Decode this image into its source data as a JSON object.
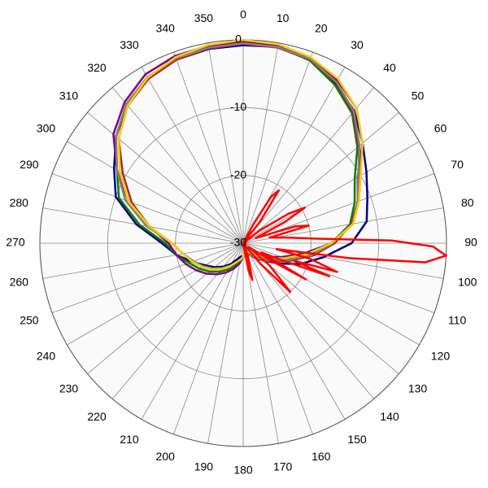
{
  "chart_data": {
    "type": "polar",
    "rlim": [
      -30,
      0
    ],
    "rticks": [
      0,
      -10,
      -20,
      -30
    ],
    "thetaticks": [
      0,
      10,
      20,
      30,
      40,
      50,
      60,
      70,
      80,
      90,
      100,
      110,
      120,
      130,
      140,
      150,
      160,
      170,
      180,
      190,
      200,
      210,
      220,
      230,
      240,
      250,
      260,
      270,
      280,
      290,
      300,
      310,
      320,
      330,
      340,
      350
    ],
    "grid": true,
    "series": [
      {
        "color": "#000080",
        "theta": [
          0,
          10,
          20,
          30,
          40,
          50,
          60,
          70,
          80,
          90,
          100,
          110,
          120,
          130,
          140,
          150,
          160,
          170,
          180,
          190,
          200,
          210,
          220,
          230,
          240,
          250,
          260,
          270,
          280,
          290,
          300,
          310,
          320,
          330,
          340,
          350
        ],
        "values": [
          -0.8,
          -0.6,
          -1.2,
          -2.8,
          -4.5,
          -7,
          -9,
          -10.5,
          -11.5,
          -14,
          -18,
          -21,
          -24,
          -26,
          -27,
          -28,
          -28,
          -28,
          -28,
          -28,
          -27.5,
          -26.5,
          -25.5,
          -24.5,
          -23.5,
          -22,
          -20,
          -18,
          -14,
          -10,
          -8,
          -5.5,
          -3.5,
          -2,
          -1.2,
          -0.9
        ]
      },
      {
        "color": "#008000",
        "theta": [
          0,
          10,
          20,
          30,
          40,
          50,
          60,
          70,
          80,
          90,
          100,
          110,
          120,
          130,
          140,
          150,
          160,
          170,
          180,
          190,
          200,
          210,
          220,
          230,
          240,
          250,
          260,
          270,
          280,
          290,
          300,
          310,
          320,
          330,
          340,
          350
        ],
        "values": [
          -0.4,
          -0.6,
          -1.3,
          -3,
          -5,
          -8,
          -11,
          -12.5,
          -14,
          -17,
          -20,
          -23,
          -25,
          -26.5,
          -27.5,
          -28,
          -28.5,
          -28.5,
          -28,
          -27.5,
          -26.5,
          -25.5,
          -24.5,
          -23.5,
          -22.5,
          -21.5,
          -20,
          -18.5,
          -14.5,
          -10.5,
          -8.5,
          -5.5,
          -3.2,
          -1.8,
          -1,
          -0.6
        ]
      },
      {
        "color": "#800080",
        "theta": [
          0,
          10,
          20,
          30,
          40,
          50,
          60,
          70,
          80,
          90,
          100,
          110,
          120,
          130,
          140,
          150,
          160,
          170,
          180,
          190,
          200,
          210,
          220,
          230,
          240,
          250,
          260,
          270,
          280,
          290,
          300,
          310,
          320,
          330,
          340,
          350
        ],
        "values": [
          -0.3,
          -0.4,
          -1,
          -2.2,
          -4,
          -7,
          -10.5,
          -12,
          -13.5,
          -17,
          -21,
          -24,
          -26,
          -27,
          -28,
          -28.5,
          -28.5,
          -28.5,
          -28,
          -27,
          -26,
          -25,
          -24,
          -23,
          -22,
          -21,
          -20,
          -19,
          -16,
          -12,
          -8.5,
          -5,
          -2.8,
          -1.2,
          -0.6,
          -0.4
        ]
      },
      {
        "color": "#a52a2a",
        "theta": [
          0,
          10,
          20,
          30,
          40,
          50,
          60,
          70,
          80,
          90,
          100,
          110,
          120,
          130,
          140,
          150,
          160,
          170,
          180,
          190,
          200,
          210,
          220,
          230,
          240,
          250,
          260,
          270,
          280,
          290,
          300,
          310,
          320,
          330,
          340,
          350
        ],
        "values": [
          -0.6,
          -0.7,
          -1.2,
          -2.6,
          -4.8,
          -7.8,
          -10.2,
          -12,
          -13.8,
          -16.5,
          -19.5,
          -22.5,
          -24.5,
          -26,
          -27,
          -28,
          -28,
          -28,
          -28,
          -27.5,
          -27,
          -26,
          -25,
          -24,
          -23,
          -22,
          -21,
          -19.5,
          -16,
          -12.5,
          -9.5,
          -6,
          -3.5,
          -2,
          -1.2,
          -0.8
        ]
      },
      {
        "color": "#808080",
        "theta": [
          0,
          10,
          20,
          30,
          40,
          50,
          60,
          70,
          80,
          90,
          100,
          110,
          120,
          130,
          140,
          150,
          160,
          170,
          180,
          190,
          200,
          210,
          220,
          230,
          240,
          250,
          260,
          270,
          280,
          290,
          300,
          310,
          320,
          330,
          340,
          350
        ],
        "values": [
          -0.5,
          -0.6,
          -1.1,
          -2.5,
          -4.6,
          -7.6,
          -10.4,
          -12,
          -13.6,
          -16.8,
          -19.8,
          -22.8,
          -24.8,
          -26.2,
          -27.2,
          -28,
          -28,
          -28,
          -28,
          -27.5,
          -27,
          -26.2,
          -25.2,
          -24.2,
          -23.2,
          -22.2,
          -21,
          -19.5,
          -15.5,
          -11.5,
          -8.5,
          -5.5,
          -3.2,
          -1.7,
          -1,
          -0.7
        ]
      },
      {
        "color": "#ffcc00",
        "theta": [
          0,
          10,
          20,
          30,
          40,
          50,
          60,
          70,
          80,
          90,
          100,
          110,
          120,
          130,
          140,
          150,
          160,
          170,
          180,
          190,
          200,
          210,
          220,
          230,
          240,
          250,
          260,
          270,
          280,
          290,
          300,
          310,
          320,
          330,
          340,
          350
        ],
        "values": [
          0,
          -0.2,
          -0.8,
          -2,
          -4,
          -7,
          -10,
          -11.8,
          -13.5,
          -17,
          -20.5,
          -23.5,
          -25.5,
          -27,
          -28,
          -28.5,
          -28.5,
          -28.5,
          -28,
          -27.5,
          -27,
          -26,
          -25,
          -24,
          -23,
          -22,
          -21,
          -19.5,
          -16,
          -12,
          -9,
          -6,
          -3.5,
          -1.8,
          -0.8,
          -0.3
        ]
      },
      {
        "color": "#ff0000",
        "theta": [
          0,
          20,
          28,
          31,
          34,
          38,
          44,
          52,
          57,
          60,
          63,
          68,
          72,
          75,
          78,
          82,
          86,
          89,
          91,
          93.5,
          96,
          98,
          100,
          103,
          107,
          109,
          111,
          114,
          117,
          120,
          122,
          125,
          130,
          136,
          140,
          148,
          160,
          166,
          169,
          172,
          180,
          200,
          300,
          350
        ],
        "values": [
          -30,
          -30,
          -27,
          -22,
          -20.6,
          -26,
          -30,
          -27,
          -22,
          -19.5,
          -23,
          -28,
          -22,
          -20,
          -26,
          -24,
          -20,
          -8,
          -2,
          0,
          -3,
          -14,
          -25,
          -20,
          -15.5,
          -22,
          -16.4,
          -24,
          -27,
          -19.3,
          -25,
          -29,
          -25,
          -20,
          -26,
          -30,
          -28,
          -24.4,
          -26,
          -30,
          -30,
          -30,
          -30,
          -30
        ]
      }
    ]
  }
}
